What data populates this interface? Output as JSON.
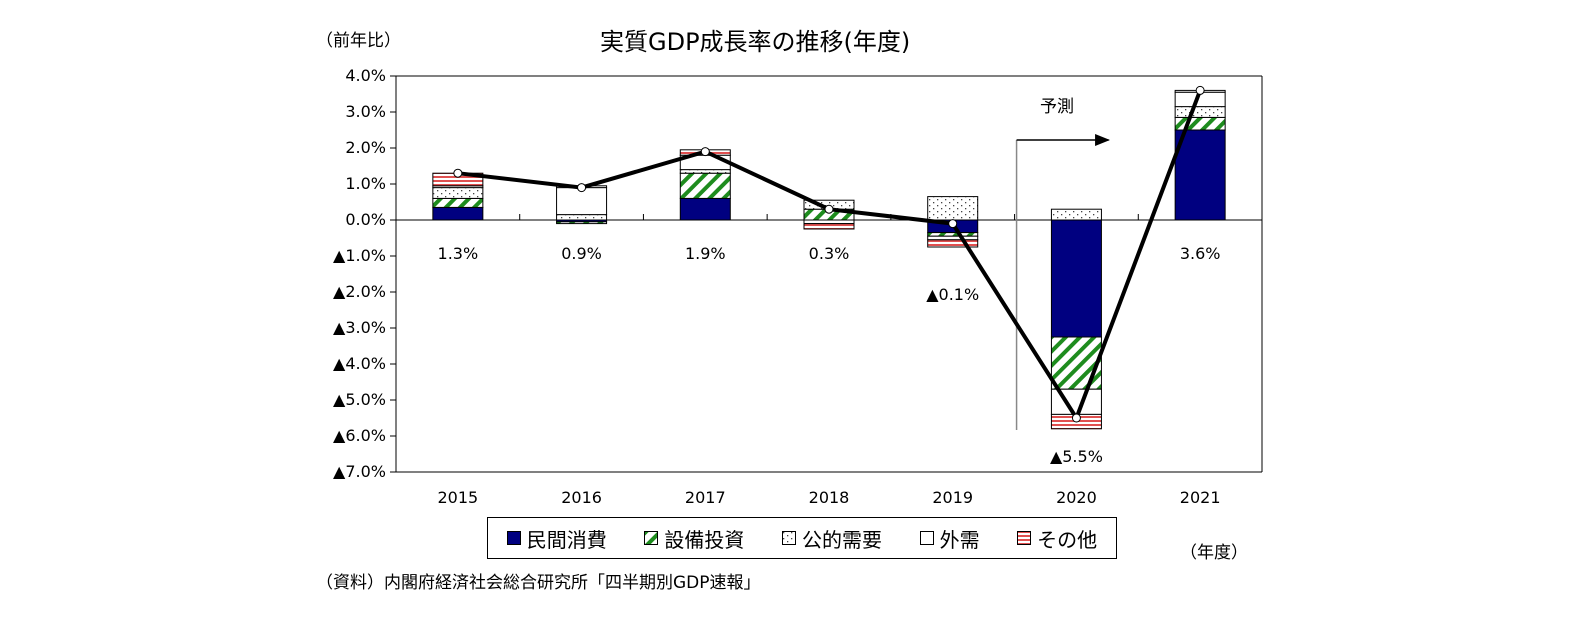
{
  "chart_data": {
    "type": "bar",
    "stacked": true,
    "title": "実質GDP成長率の推移(年度)",
    "ylabel": "（前年比）",
    "xlabel": "（年度）",
    "source": "（資料）内閣府経済社会総合研究所「四半期別GDP速報」",
    "ylim": [
      -7.0,
      4.0
    ],
    "yticks": [
      4.0,
      3.0,
      2.0,
      1.0,
      0.0,
      -1.0,
      -2.0,
      -3.0,
      -4.0,
      -5.0,
      -6.0,
      -7.0
    ],
    "ytick_labels": [
      "4.0%",
      "3.0%",
      "2.0%",
      "1.0%",
      "0.0%",
      "▲1.0%",
      "▲2.0%",
      "▲3.0%",
      "▲4.0%",
      "▲5.0%",
      "▲6.0%",
      "▲7.0%"
    ],
    "categories": [
      "2015",
      "2016",
      "2017",
      "2018",
      "2019",
      "2020",
      "2021"
    ],
    "series": [
      {
        "name": "民間消費",
        "color": "#000080",
        "pattern": "solid",
        "values": [
          0.35,
          -0.05,
          0.6,
          0.0,
          -0.35,
          -3.25,
          2.5
        ]
      },
      {
        "name": "設備投資",
        "color": "#1e8c1e",
        "pattern": "diagonal",
        "values": [
          0.25,
          -0.05,
          0.7,
          0.3,
          -0.1,
          -1.45,
          0.35
        ]
      },
      {
        "name": "公的需要",
        "color": "#555555",
        "pattern": "dots",
        "values": [
          0.3,
          0.15,
          0.1,
          0.25,
          0.65,
          0.3,
          0.3
        ]
      },
      {
        "name": "外需",
        "color": "#ffffff",
        "pattern": "blank",
        "values": [
          0.05,
          0.75,
          0.4,
          -0.1,
          -0.1,
          -0.7,
          0.4
        ]
      },
      {
        "name": "その他",
        "color": "#e05050",
        "pattern": "horizontal",
        "values": [
          0.35,
          0.05,
          0.15,
          -0.15,
          -0.2,
          -0.4,
          0.05
        ]
      }
    ],
    "line": {
      "name": "実質GDP",
      "values": [
        1.3,
        0.9,
        1.9,
        0.3,
        -0.1,
        -5.5,
        3.6
      ]
    },
    "data_labels": [
      "1.3%",
      "0.9%",
      "1.9%",
      "0.3%",
      "▲0.1%",
      "▲5.5%",
      "3.6%"
    ],
    "annotation": "予測",
    "forecast_from": "2020",
    "legend_placement": "bottom",
    "grid": false
  }
}
